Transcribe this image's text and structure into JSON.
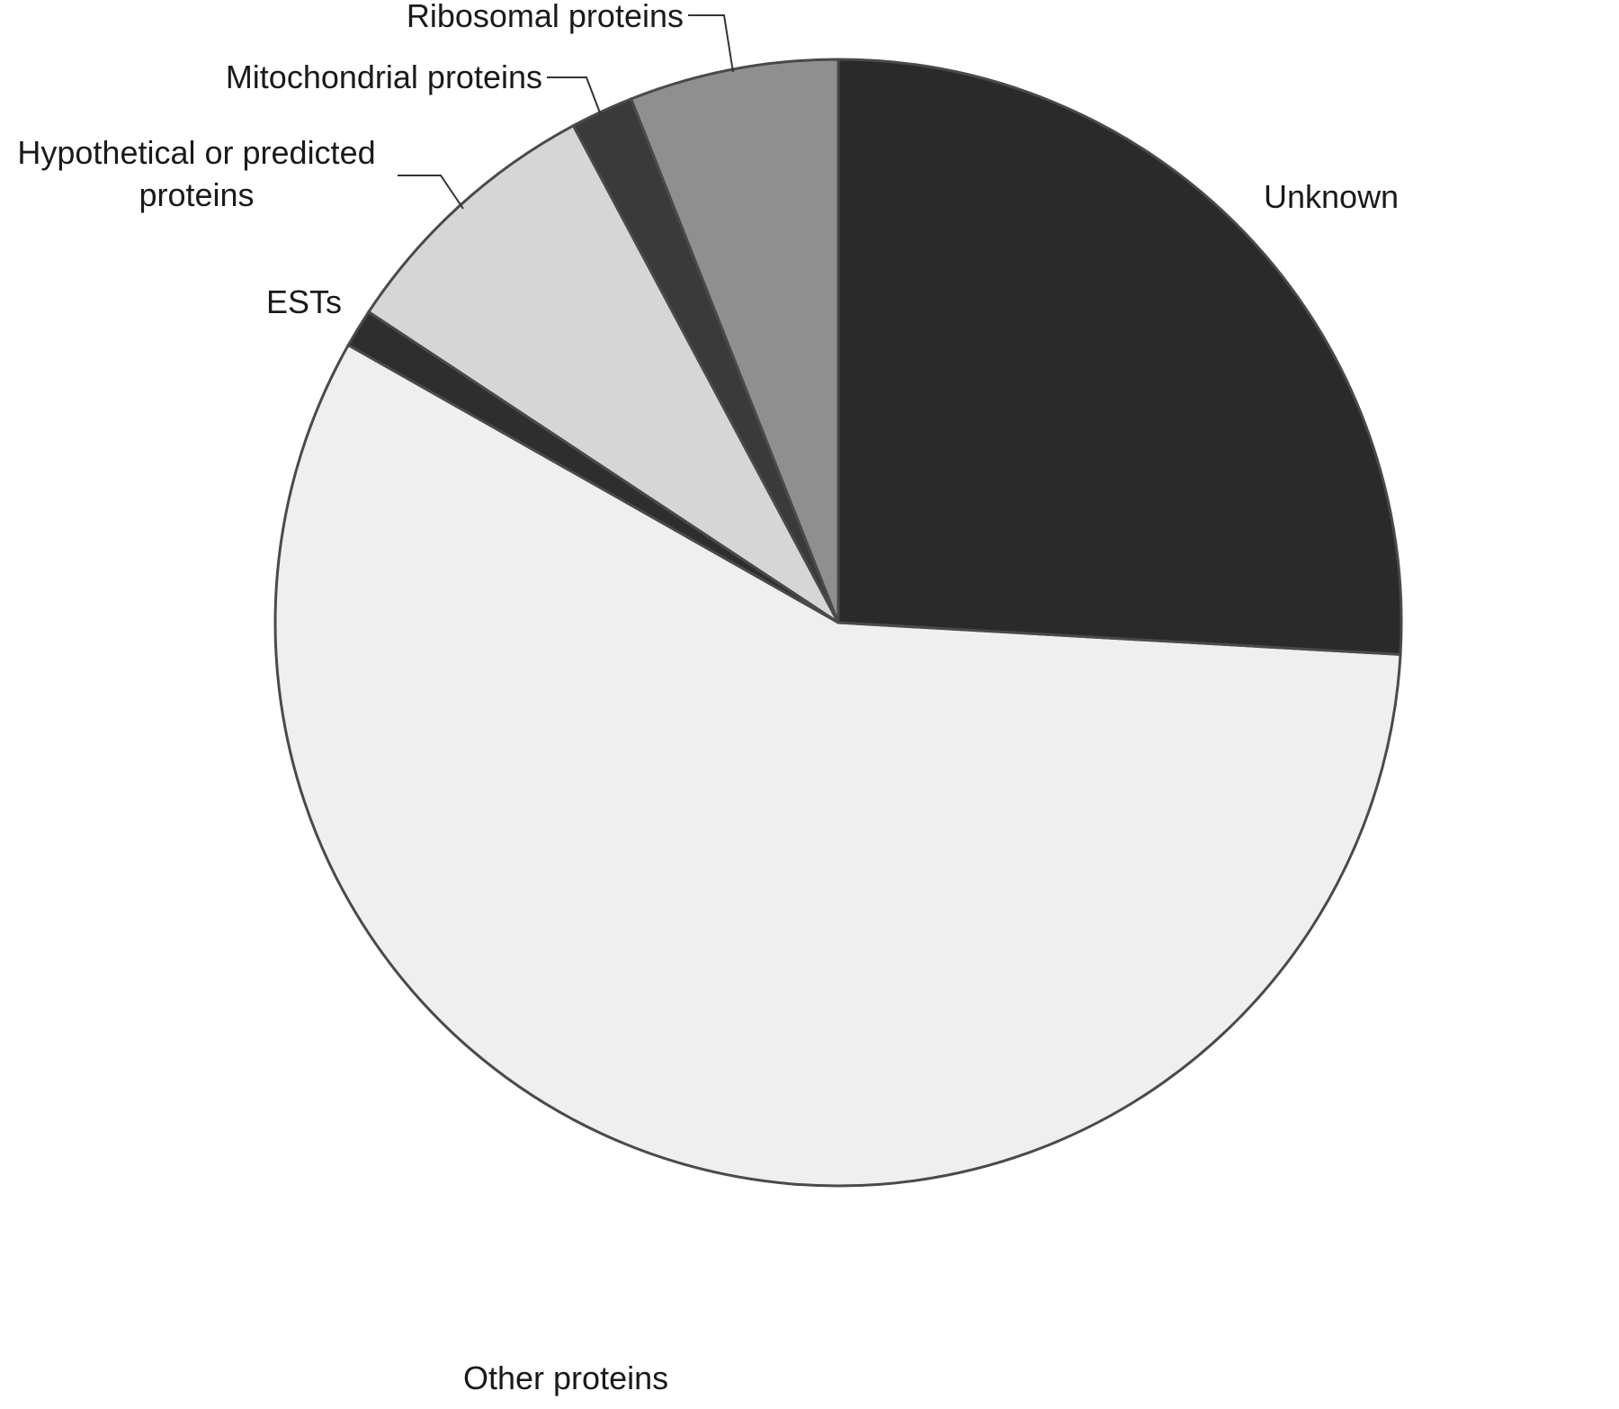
{
  "chart_data": {
    "type": "pie",
    "categories": [
      "Unknown",
      "Other proteins",
      "ESTs",
      "Hypothetical or predicted proteins",
      "Mitochondrial proteins",
      "Ribosomal proteins"
    ],
    "values": [
      25.9,
      57.3,
      1.1,
      7.9,
      1.8,
      6.0
    ],
    "colors": [
      "#2a2a2a",
      "#efefef",
      "#2e2e2e",
      "#d6d6d6",
      "#3a3a3a",
      "#8f8f8f"
    ],
    "start_angle": "top",
    "direction": "clockwise"
  }
}
